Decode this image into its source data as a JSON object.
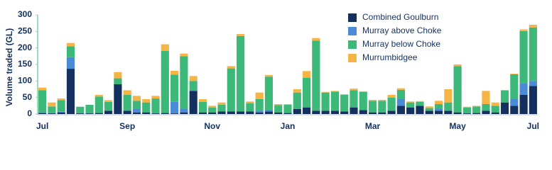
{
  "chart_data": {
    "type": "stacked_bar",
    "y_label": "Volume traded (GL)",
    "categories": [
      "Jul",
      null,
      null,
      null,
      null,
      null,
      null,
      null,
      null,
      "Sep",
      null,
      null,
      null,
      null,
      null,
      null,
      null,
      null,
      "Nov",
      null,
      null,
      null,
      null,
      null,
      null,
      null,
      "Jan",
      null,
      null,
      null,
      null,
      null,
      null,
      null,
      null,
      "Mar",
      null,
      null,
      null,
      null,
      null,
      null,
      null,
      null,
      "May",
      null,
      null,
      null,
      null,
      null,
      null,
      null,
      "Jul"
    ],
    "series": [
      {
        "name": "Combined Goulburn",
        "color": "#14305e",
        "values": [
          3,
          2,
          5,
          137,
          2,
          2,
          3,
          10,
          90,
          10,
          5,
          5,
          2,
          3,
          2,
          5,
          70,
          5,
          5,
          8,
          8,
          8,
          8,
          5,
          8,
          5,
          3,
          15,
          20,
          10,
          10,
          10,
          8,
          20,
          12,
          5,
          5,
          10,
          25,
          20,
          25,
          10,
          10,
          10,
          5,
          2,
          3,
          10,
          5,
          35,
          25,
          58,
          85
        ]
      },
      {
        "name": "Murray above Choke",
        "color": "#4a8ad6",
        "values": [
          2,
          1,
          2,
          35,
          0,
          0,
          0,
          0,
          0,
          0,
          10,
          0,
          0,
          0,
          35,
          10,
          2,
          0,
          0,
          0,
          0,
          0,
          0,
          5,
          5,
          0,
          0,
          0,
          0,
          0,
          0,
          0,
          0,
          0,
          0,
          0,
          0,
          0,
          20,
          0,
          0,
          0,
          5,
          0,
          0,
          0,
          0,
          0,
          0,
          0,
          20,
          35,
          15
        ]
      },
      {
        "name": "Murray below Choke",
        "color": "#3cb878",
        "values": [
          67,
          20,
          35,
          33,
          20,
          26,
          50,
          27,
          18,
          48,
          25,
          30,
          45,
          188,
          82,
          160,
          28,
          32,
          15,
          20,
          130,
          228,
          25,
          35,
          100,
          22,
          25,
          50,
          90,
          212,
          55,
          58,
          50,
          52,
          55,
          35,
          35,
          40,
          28,
          15,
          12,
          8,
          15,
          25,
          140,
          18,
          20,
          20,
          20,
          37,
          75,
          158,
          162
        ]
      },
      {
        "name": "Murrumbidgee",
        "color": "#f5b445",
        "values": [
          8,
          12,
          5,
          10,
          0,
          0,
          5,
          5,
          19,
          14,
          15,
          10,
          8,
          20,
          12,
          8,
          15,
          8,
          5,
          7,
          7,
          6,
          5,
          20,
          5,
          3,
          2,
          10,
          20,
          8,
          2,
          2,
          2,
          5,
          2,
          3,
          3,
          8,
          5,
          3,
          2,
          5,
          10,
          40,
          5,
          2,
          2,
          40,
          10,
          0,
          2,
          5,
          8
        ]
      }
    ],
    "ylim": [
      0,
      300
    ],
    "yticks": [
      0,
      50,
      100,
      150,
      200,
      250,
      300
    ],
    "grid": false,
    "legend": "top-right"
  }
}
